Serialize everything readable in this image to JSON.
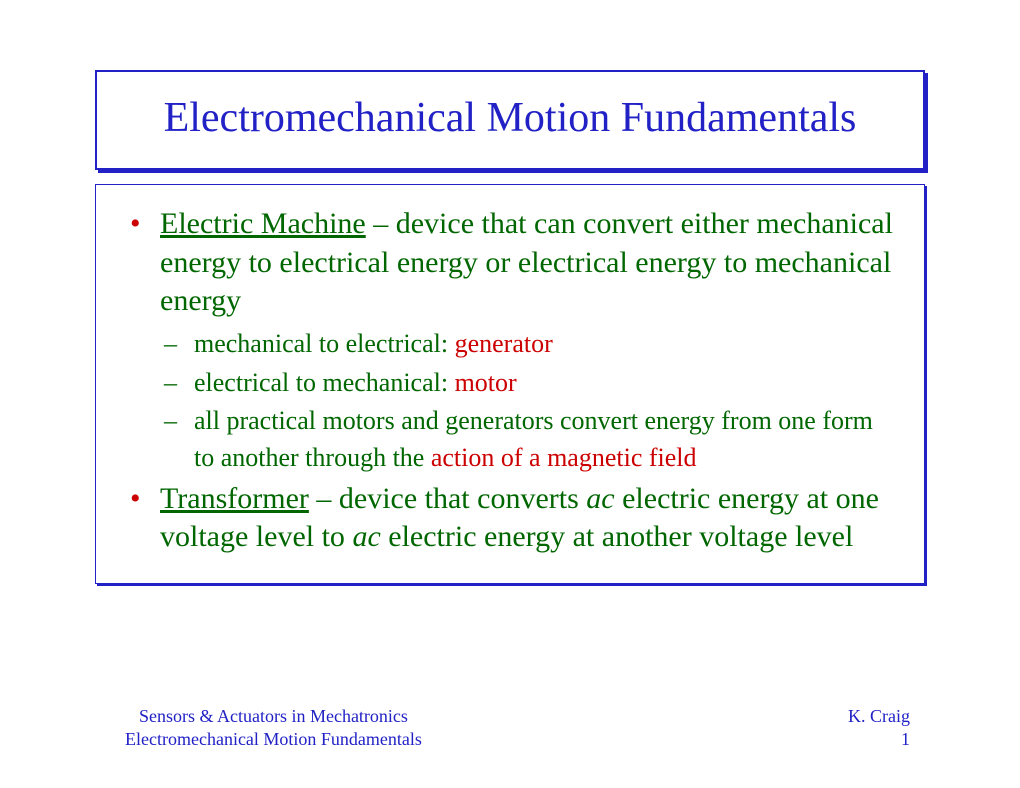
{
  "title": "Electromechanical Motion Fundamentals",
  "body": {
    "item1": {
      "term": "Electric Machine",
      "rest": " – device that can convert either mechanical energy to electrical energy or electrical energy to mechanical energy",
      "sub1_pre": "mechanical to electrical: ",
      "sub1_red": "generator",
      "sub2_pre": "electrical to mechanical: ",
      "sub2_red": "motor",
      "sub3_pre": "all practical motors and generators convert energy from one form to another through the ",
      "sub3_red": "action of a magnetic field"
    },
    "item2": {
      "term": "Transformer",
      "seg1": " – device that converts ",
      "ac1": "ac",
      "seg2": " electric energy at one voltage level to ",
      "ac2": "ac",
      "seg3": " electric energy at another voltage level"
    }
  },
  "footer": {
    "left_line1": "Sensors & Actuators in Mechatronics",
    "left_line2": "Electromechanical Motion Fundamentals",
    "right_line1": "K. Craig",
    "right_line2": "1"
  },
  "colors": {
    "title_border": "#2121c6",
    "title_text": "#2121c6",
    "body_text": "#006600",
    "bullet_l1": "#cc0000",
    "highlight": "#cc0000",
    "footer": "#2121c6",
    "background": "#ffffff"
  }
}
